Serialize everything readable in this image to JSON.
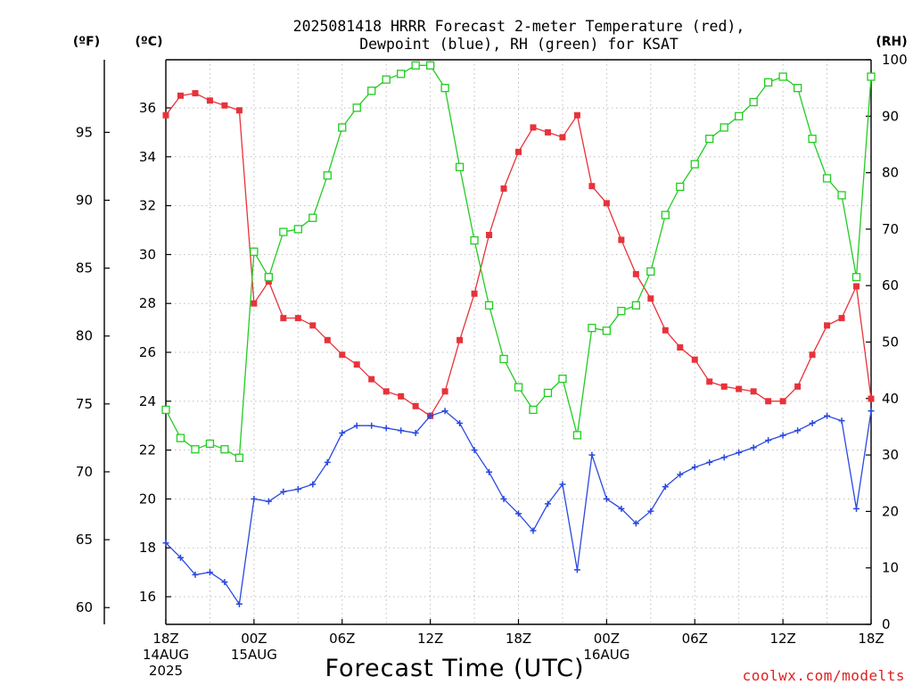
{
  "chart_data": {
    "type": "line",
    "title_lines": [
      "2025081418 HRRR Forecast 2-meter Temperature (red),",
      "Dewpoint (blue), RH (green) for KSAT"
    ],
    "xlabel": "Forecast Time (UTC)",
    "credit": "coolwx.com/modelts",
    "units": {
      "fahrenheit": "(ºF)",
      "celsius": "(ºC)",
      "rh": "(RH)"
    },
    "x_ticks": [
      {
        "hour": 0,
        "lines": [
          "18Z",
          "14AUG",
          "2025"
        ]
      },
      {
        "hour": 6,
        "lines": [
          "00Z",
          "15AUG"
        ]
      },
      {
        "hour": 12,
        "lines": [
          "06Z"
        ]
      },
      {
        "hour": 18,
        "lines": [
          "12Z"
        ]
      },
      {
        "hour": 24,
        "lines": [
          "18Z"
        ]
      },
      {
        "hour": 30,
        "lines": [
          "00Z",
          "16AUG"
        ]
      },
      {
        "hour": 36,
        "lines": [
          "06Z"
        ]
      },
      {
        "hour": 42,
        "lines": [
          "12Z"
        ]
      },
      {
        "hour": 48,
        "lines": [
          "18Z"
        ]
      }
    ],
    "xlim": [
      0,
      48
    ],
    "ylim_c": [
      14.87,
      37.97
    ],
    "ylim_rh": [
      0,
      100
    ],
    "celsius_ticks": [
      16,
      18,
      20,
      22,
      24,
      26,
      28,
      30,
      32,
      34,
      36
    ],
    "fahrenheit_ticks": [
      60,
      65,
      70,
      75,
      80,
      85,
      90,
      95
    ],
    "rh_ticks": [
      0,
      10,
      20,
      30,
      40,
      50,
      60,
      70,
      80,
      90,
      100
    ],
    "grid": true,
    "series": [
      {
        "name": "Temperature",
        "color": "#e8323a",
        "marker": "filled-square",
        "axis": "celsius",
        "values": [
          35.7,
          36.5,
          36.6,
          36.3,
          36.1,
          35.9,
          28.0,
          28.9,
          27.4,
          27.4,
          27.1,
          26.5,
          25.9,
          25.5,
          24.9,
          24.4,
          24.2,
          23.8,
          23.4,
          24.4,
          26.5,
          28.4,
          30.8,
          32.7,
          34.2,
          35.2,
          35.0,
          34.8,
          35.7,
          32.8,
          32.1,
          30.6,
          29.2,
          28.2,
          26.9,
          26.2,
          25.7,
          24.8,
          24.6,
          24.5,
          24.4,
          24.0,
          24.0,
          24.6,
          25.9,
          27.1,
          27.4,
          28.7,
          24.1
        ]
      },
      {
        "name": "Dewpoint",
        "color": "#2a48e0",
        "marker": "plus",
        "axis": "celsius",
        "values": [
          18.2,
          17.6,
          16.9,
          17.0,
          16.6,
          15.7,
          20.0,
          19.9,
          20.3,
          20.4,
          20.6,
          21.5,
          22.7,
          23.0,
          23.0,
          22.9,
          22.8,
          22.7,
          23.4,
          23.6,
          23.1,
          22.0,
          21.1,
          20.0,
          19.4,
          18.7,
          19.8,
          20.6,
          17.1,
          21.8,
          20.0,
          19.6,
          19.0,
          19.5,
          20.5,
          21.0,
          21.3,
          21.5,
          21.7,
          21.9,
          22.1,
          22.4,
          22.6,
          22.8,
          23.1,
          23.4,
          23.2,
          19.6,
          23.6
        ]
      },
      {
        "name": "RH",
        "color": "#22cc22",
        "marker": "open-square",
        "axis": "rh",
        "values": [
          38.0,
          33.0,
          31.0,
          32.0,
          31.0,
          29.5,
          66.0,
          61.5,
          69.5,
          70.0,
          72.0,
          79.5,
          88.0,
          91.5,
          94.5,
          96.5,
          97.5,
          99.0,
          99.0,
          95.0,
          81.0,
          68.0,
          56.5,
          47.0,
          42.0,
          38.0,
          41.0,
          43.5,
          33.5,
          52.5,
          52.0,
          55.5,
          56.5,
          62.5,
          72.5,
          77.5,
          81.5,
          86.0,
          88.0,
          90.0,
          92.5,
          96.0,
          97.0,
          95.0,
          86.0,
          79.0,
          76.0,
          61.5,
          97.0
        ]
      }
    ]
  }
}
